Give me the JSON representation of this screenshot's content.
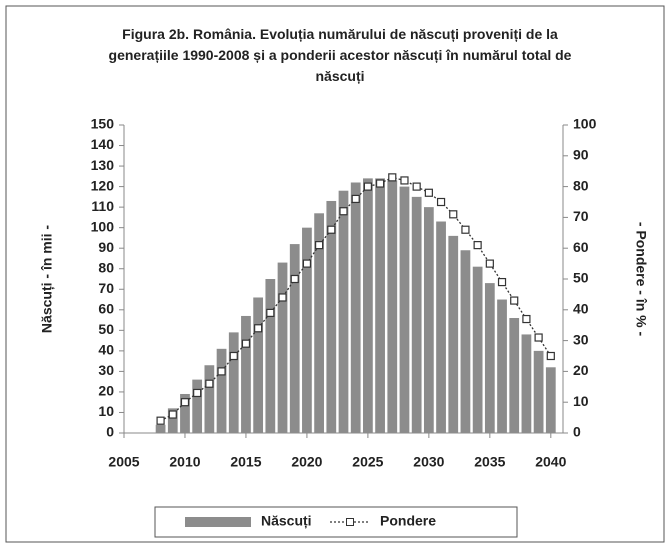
{
  "chart_data": {
    "type": "bar_line",
    "title": "Figura 2b. România. Evoluția numărului de născuți proveniți de la generațiile 1990-2008 și a ponderii acestor născuți în numărul total de născuți",
    "y_label": "Născuți - în mii -",
    "y2_label": "- Pondere - în % -",
    "x": [
      2008,
      2009,
      2010,
      2011,
      2012,
      2013,
      2014,
      2015,
      2016,
      2017,
      2018,
      2019,
      2020,
      2021,
      2022,
      2023,
      2024,
      2025,
      2026,
      2027,
      2028,
      2029,
      2030,
      2031,
      2032,
      2033,
      2034,
      2035,
      2036,
      2037,
      2038,
      2039,
      2040
    ],
    "series": [
      {
        "name": "Născuți",
        "color": "#8c8c8c",
        "kind": "bar",
        "values": [
          4,
          12,
          19,
          26,
          33,
          41,
          49,
          57,
          66,
          75,
          83,
          92,
          100,
          107,
          113,
          118,
          122,
          124,
          124,
          123,
          120,
          115,
          110,
          103,
          96,
          89,
          81,
          73,
          65,
          56,
          48,
          40,
          32
        ]
      },
      {
        "name": "Pondere",
        "color": "#333333",
        "kind": "line",
        "axis": "y2",
        "values": [
          4,
          6,
          10,
          13,
          16,
          20,
          25,
          29,
          34,
          39,
          44,
          50,
          55,
          61,
          66,
          72,
          76,
          80,
          81,
          83,
          82,
          80,
          78,
          75,
          71,
          66,
          61,
          55,
          49,
          43,
          37,
          31,
          25
        ]
      }
    ],
    "xlim": [
      2005,
      2041
    ],
    "xticks": [
      2005,
      2010,
      2015,
      2020,
      2025,
      2030,
      2035,
      2040
    ],
    "ylim": [
      0,
      150
    ],
    "yticks": [
      0,
      10,
      20,
      30,
      40,
      50,
      60,
      70,
      80,
      90,
      100,
      110,
      120,
      130,
      140,
      150
    ],
    "y2lim": [
      0,
      100
    ],
    "y2ticks": [
      0,
      10,
      20,
      30,
      40,
      50,
      60,
      70,
      80,
      90,
      100
    ],
    "grid": false,
    "legend": "bottom"
  }
}
